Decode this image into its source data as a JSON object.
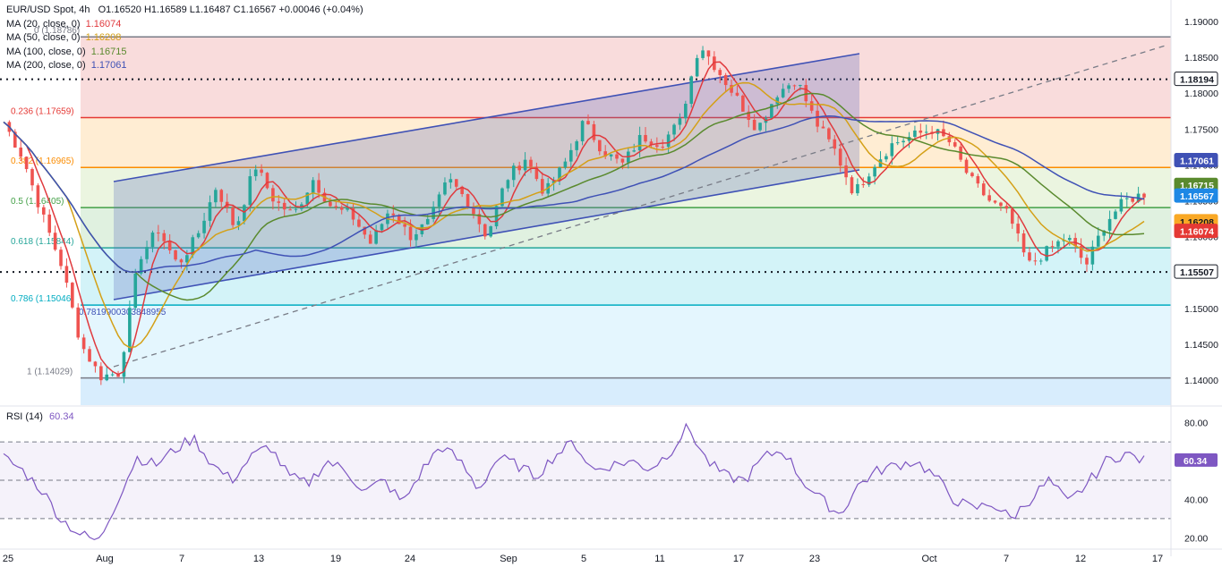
{
  "header": {
    "symbol": "EUR/USD Spot, 4h",
    "ohlc": "O1.16520 H1.16589 L1.16487 C1.16567 +0.00046 (+0.04%)"
  },
  "indicators": [
    {
      "label": "MA (20, close, 0)",
      "value": "1.16074",
      "color": "#e03a3e"
    },
    {
      "label": "MA (50, close, 0)",
      "value": "1.16208",
      "color": "#d4a017"
    },
    {
      "label": "MA (100, close, 0)",
      "value": "1.16715",
      "color": "#5a8a2e"
    },
    {
      "label": "MA (200, close, 0)",
      "value": "1.17061",
      "color": "#3f51b5"
    }
  ],
  "colors": {
    "up": "#26a69a",
    "down": "#ef5350",
    "ma20": "#e03a3e",
    "ma50": "#d4a017",
    "ma100": "#5a8a2e",
    "ma200": "#3f51b5",
    "rsi": "#7e57c2",
    "channel": "#3f51b5",
    "price_label": "#1e88e5"
  },
  "chart_data": {
    "type": "candlestick",
    "timeframe": "4h",
    "x_labels": [
      "25",
      "Aug",
      "7",
      "13",
      "19",
      "24",
      "Sep",
      "5",
      "11",
      "17",
      "23",
      "Oct",
      "7",
      "12",
      "17"
    ],
    "ylim": [
      1.1365,
      1.192
    ],
    "y_ticks": [
      "1.19000",
      "1.18500",
      "1.18000",
      "1.17500",
      "1.17000",
      "1.16500",
      "1.16000",
      "1.15500",
      "1.15000",
      "1.14500",
      "1.14000"
    ],
    "price_path": [
      1.176,
      1.171,
      1.163,
      1.156,
      1.145,
      1.1405,
      1.141,
      1.157,
      1.161,
      1.156,
      1.16,
      1.167,
      1.161,
      1.17,
      1.165,
      1.163,
      1.168,
      1.164,
      1.163,
      1.159,
      1.164,
      1.16,
      1.162,
      1.168,
      1.165,
      1.16,
      1.168,
      1.171,
      1.166,
      1.17,
      1.176,
      1.172,
      1.17,
      1.174,
      1.173,
      1.176,
      1.187,
      1.183,
      1.179,
      1.175,
      1.18,
      1.182,
      1.176,
      1.172,
      1.166,
      1.17,
      1.173,
      1.174,
      1.175,
      1.173,
      1.168,
      1.165,
      1.163,
      1.156,
      1.158,
      1.16,
      1.156,
      1.162,
      1.165,
      1.166
    ],
    "fibonacci": [
      {
        "label": "0.236 (1.17659)",
        "price": 1.17659,
        "color": "#e53935"
      },
      {
        "label": "0.382 (1.16965)",
        "price": 1.16965,
        "color": "#fb8c00"
      },
      {
        "label": "0.5 (1.16405)",
        "price": 1.16405,
        "color": "#43a047"
      },
      {
        "label": "0.618 (1.15844)",
        "price": 1.15844,
        "color": "#26a69a"
      },
      {
        "label": "0.786 (1.15046)",
        "price": 1.15046,
        "color": "#00acc1"
      },
      {
        "label": "1 (1.14029)",
        "price": 1.14029,
        "color": "#787b86"
      }
    ],
    "fib_top_label": "0 (1.18786)",
    "fib_top_price": 1.18786,
    "horizontal_levels": [
      1.18194,
      1.15507
    ],
    "annotation": "0.7819900303848955",
    "price_labels": [
      {
        "text": "1.18194",
        "price": 1.18194,
        "bg": "#ffffff",
        "fg": "#131722",
        "border": "#131722"
      },
      {
        "text": "1.17061",
        "price": 1.17061,
        "bg": "#3f51b5",
        "fg": "#ffffff",
        "border": "#3f51b5"
      },
      {
        "text": "1.16715",
        "price": 1.16715,
        "bg": "#5a8a2e",
        "fg": "#ffffff",
        "border": "#5a8a2e"
      },
      {
        "text": "1.16567",
        "price": 1.16567,
        "bg": "#1e88e5",
        "fg": "#ffffff",
        "border": "#1e88e5"
      },
      {
        "text": "1.16208",
        "price": 1.16208,
        "bg": "#f9a825",
        "fg": "#131722",
        "border": "#f9a825"
      },
      {
        "text": "1.16074",
        "price": 1.16074,
        "bg": "#e53935",
        "fg": "#ffffff",
        "border": "#e53935"
      },
      {
        "text": "1.15507",
        "price": 1.15507,
        "bg": "#ffffff",
        "fg": "#131722",
        "border": "#131722"
      }
    ],
    "rsi": {
      "label": "RSI (14)",
      "value": "60.34",
      "ylim": [
        15,
        85
      ],
      "y_ticks": [
        "80.00",
        "40.00",
        "20.00"
      ],
      "bands": [
        70,
        50,
        30
      ],
      "path": [
        62,
        55,
        45,
        30,
        22,
        18,
        40,
        62,
        58,
        66,
        72,
        58,
        50,
        62,
        68,
        52,
        48,
        60,
        55,
        44,
        50,
        38,
        55,
        68,
        60,
        45,
        62,
        58,
        52,
        63,
        70,
        55,
        58,
        60,
        56,
        64,
        78,
        60,
        52,
        50,
        62,
        66,
        50,
        40,
        32,
        48,
        55,
        58,
        60,
        52,
        40,
        35,
        38,
        30,
        40,
        50,
        38,
        48,
        60,
        64,
        60
      ]
    }
  }
}
